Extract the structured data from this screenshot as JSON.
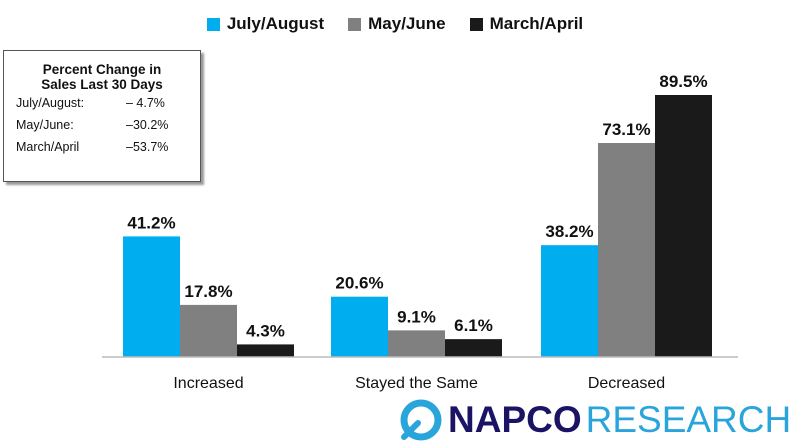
{
  "chart_data": {
    "type": "bar",
    "categories": [
      "Increased",
      "Stayed the Same",
      "Decreased"
    ],
    "series": [
      {
        "name": "July/August",
        "values": [
          41.2,
          20.6,
          38.2
        ],
        "labels": [
          "41.2%",
          "20.6%",
          "38.2%"
        ],
        "color": "#00aeef"
      },
      {
        "name": "May/June",
        "values": [
          17.8,
          9.1,
          73.1
        ],
        "labels": [
          "17.8%",
          "9.1%",
          "73.1%"
        ],
        "color": "#808080"
      },
      {
        "name": "March/April",
        "values": [
          4.3,
          6.1,
          89.5
        ],
        "labels": [
          "4.3%",
          "6.1%",
          "89.5%"
        ],
        "color": "#1a1a1a"
      }
    ],
    "title": "",
    "xlabel": "",
    "ylabel": "",
    "ylim": [
      0,
      100
    ],
    "grid": false,
    "legend": "top-center"
  },
  "inset": {
    "title": "Percent Change in\nSales Last 30 Days",
    "rows": [
      {
        "label": "July/August:",
        "value": "– 4.7%"
      },
      {
        "label": "May/June:",
        "value": "–30.2%"
      },
      {
        "label": "March/April",
        "value": "–53.7%"
      }
    ]
  },
  "logo": {
    "napco": "NAPCO",
    "research": "RESEARCH",
    "mark_color": "#2aa5dc",
    "napco_color": "#1b1464"
  }
}
